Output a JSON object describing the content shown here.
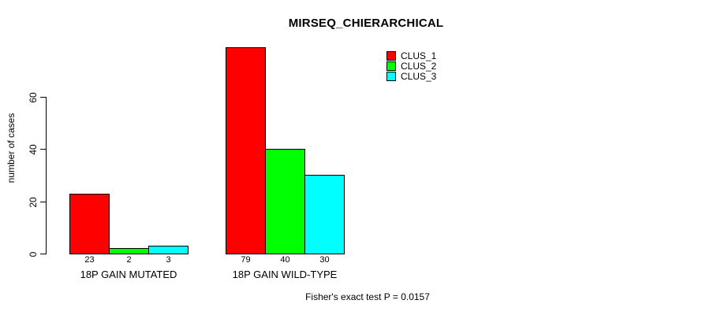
{
  "chart_data": {
    "type": "bar",
    "title": "MIRSEQ_CHIERARCHICAL",
    "ylabel": "number of cases",
    "xlabel": "",
    "categories": [
      "18P GAIN MUTATED",
      "18P GAIN WILD-TYPE"
    ],
    "series": [
      {
        "name": "CLUS_1",
        "color": "#ff0000",
        "values": [
          23,
          79
        ]
      },
      {
        "name": "CLUS_2",
        "color": "#00ff00",
        "values": [
          2,
          40
        ]
      },
      {
        "name": "CLUS_3",
        "color": "#00ffff",
        "values": [
          3,
          30
        ]
      }
    ],
    "bar_value_labels": [
      [
        23,
        2,
        3
      ],
      [
        79,
        40,
        30
      ]
    ],
    "yticks": [
      0,
      20,
      40,
      60
    ],
    "ylim": [
      0,
      80
    ],
    "grid": false,
    "legend_position": "top-right",
    "bar_border_color": "#000000",
    "axis_color": "#000000",
    "annotation": "Fisher's exact test P = 0.0157"
  }
}
